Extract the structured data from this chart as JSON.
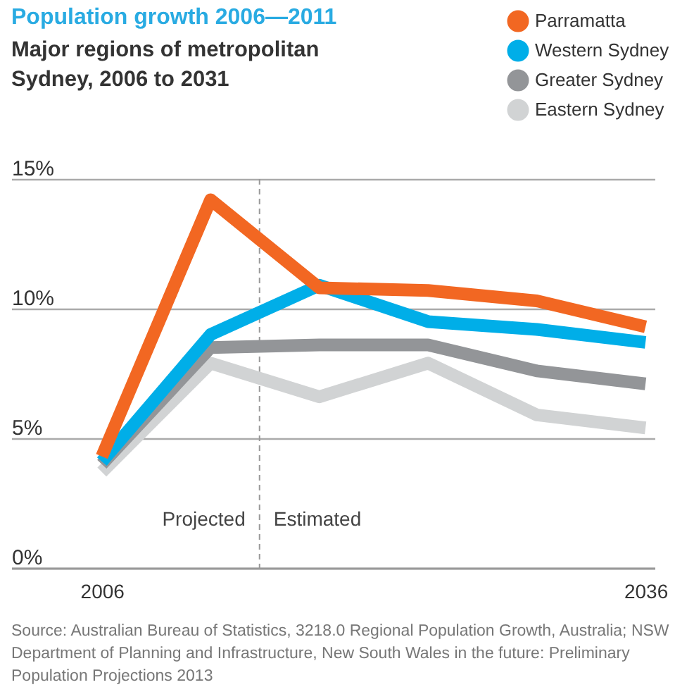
{
  "chart_data": {
    "type": "line",
    "title": "Population growth 2006—2011",
    "subtitle": "Major regions of metropolitan Sydney, 2006 to 2031",
    "x": [
      2006,
      2012,
      2018,
      2024,
      2030,
      2036
    ],
    "series": [
      {
        "name": "Parramatta",
        "color": "#f26722",
        "values": [
          4.3,
          14.2,
          10.8,
          10.7,
          10.3,
          9.3
        ]
      },
      {
        "name": "Western Sydney",
        "color": "#00aee8",
        "values": [
          4.1,
          9.0,
          10.9,
          9.5,
          9.2,
          8.7
        ]
      },
      {
        "name": "Greater Sydney",
        "color": "#939598",
        "values": [
          4.0,
          8.5,
          8.6,
          8.6,
          7.6,
          7.1
        ]
      },
      {
        "name": "Eastern Sydney",
        "color": "#d1d3d4",
        "values": [
          3.7,
          7.9,
          6.6,
          7.9,
          5.9,
          5.4
        ]
      }
    ],
    "xlim": [
      2001,
      2036.5
    ],
    "xticks": [
      2006,
      2036
    ],
    "ylim": [
      0,
      15
    ],
    "yticks": [
      {
        "value": 0,
        "label": "0%"
      },
      {
        "value": 5,
        "label": "5%"
      },
      {
        "value": 10,
        "label": "10%"
      },
      {
        "value": 15,
        "label": "15%"
      }
    ],
    "ref_lines": [
      {
        "axis": "x",
        "value": 2014.7,
        "color": "#999999",
        "line_style": "dashed"
      }
    ],
    "annotations": [
      "Projected",
      "Estimated",
      "Source: Australian Bureau of Statistics, 3218.0 Regional Population Growth, Australia; NSW Department of Planning and Infrastructure, New South Wales in the future: Preliminary Population Projections 2013"
    ],
    "grid": "y",
    "legend": "top right"
  }
}
